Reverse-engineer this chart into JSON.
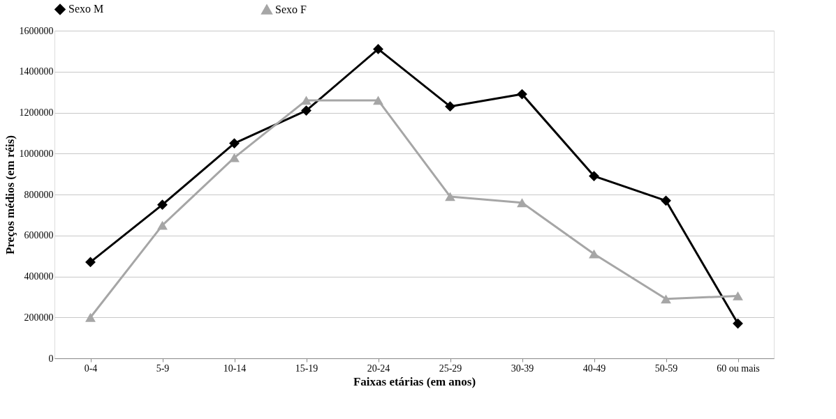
{
  "chart_data": {
    "type": "line",
    "xlabel": "Faixas etárias (em anos)",
    "ylabel": "Preços médios (em réis)",
    "categories": [
      "0-4",
      "5-9",
      "10-14",
      "15-19",
      "20-24",
      "25-29",
      "30-39",
      "40-49",
      "50-59",
      "60 ou mais"
    ],
    "series": [
      {
        "name": "Sexo M",
        "color": "#000000",
        "marker": "diamond",
        "values": [
          470000,
          750000,
          1050000,
          1210000,
          1510000,
          1230000,
          1290000,
          890000,
          770000,
          170000
        ]
      },
      {
        "name": "Sexo F",
        "color": "#a6a6a6",
        "marker": "triangle",
        "values": [
          200000,
          650000,
          980000,
          1260000,
          1260000,
          790000,
          760000,
          510000,
          290000,
          305000
        ]
      }
    ],
    "ylim": [
      0,
      1600000
    ],
    "yticks": [
      0,
      200000,
      400000,
      600000,
      800000,
      1000000,
      1200000,
      1400000,
      1600000
    ],
    "grid": "y",
    "legend": "top",
    "line_style": "solid"
  }
}
